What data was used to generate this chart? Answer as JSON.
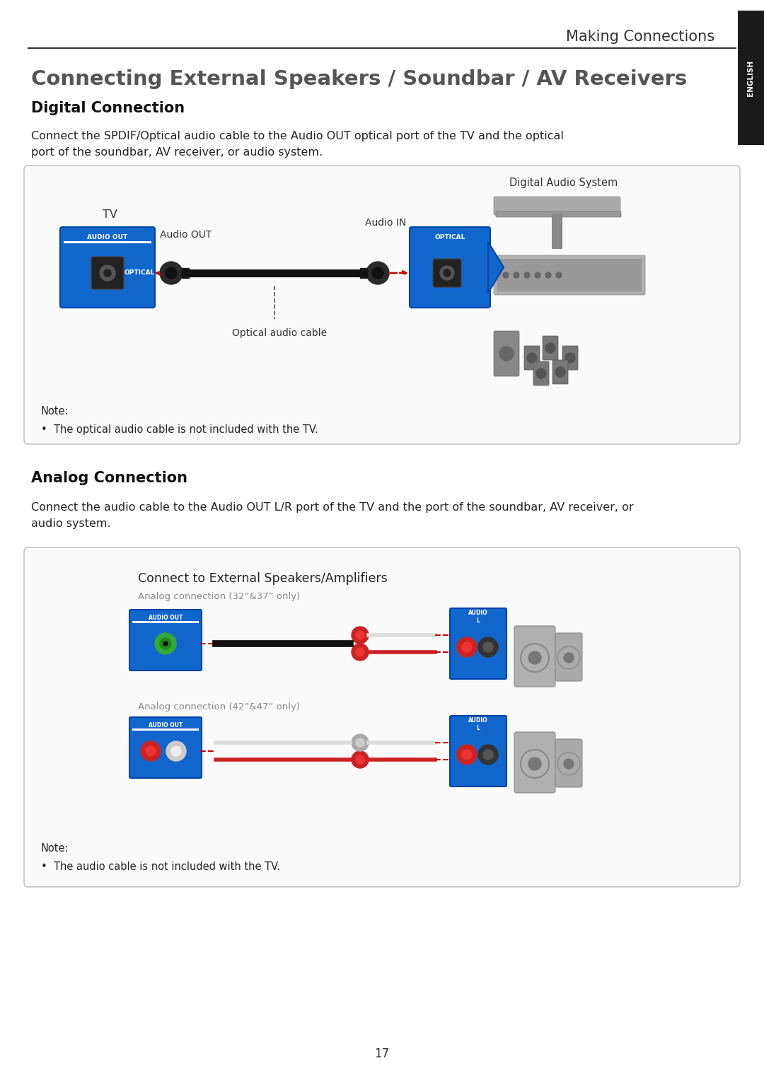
{
  "page_title": "Making Connections",
  "main_title": "Connecting External Speakers / Soundbar / AV Receivers",
  "section1_title": "Digital Connection",
  "section1_body": "Connect the SPDIF/Optical audio cable to the Audio OUT optical port of the TV and the optical\nport of the soundbar, AV receiver, or audio system.",
  "section2_title": "Analog Connection",
  "section2_body": "Connect the audio cable to the Audio OUT L/R port of the TV and the port of the soundbar, AV receiver, or\naudio system.",
  "digital_labels": {
    "tv": "TV",
    "audio_out_label": "Audio OUT",
    "audio_in_label": "Audio IN",
    "cable": "Optical audio cable",
    "system": "Digital Audio System",
    "port_out": "AUDIO OUT",
    "port_in": "OPTICAL",
    "optical_out": "OPTICAL"
  },
  "analog_labels": {
    "connect": "Connect to External Speakers/Amplifiers",
    "line1": "Analog connection (32”&37” only)",
    "line2": "Analog connection (42”&47” only)",
    "audio_out": "AUDIO OUT",
    "audio_l": "AUDIO\nL"
  },
  "note1": "Note:\n•  The optical audio cable is not included with the TV.",
  "note2": "Note:\n•  The audio cable is not included with the TV.",
  "page_number": "17",
  "english_tab": "ENGLISH",
  "bg_color": "#ffffff",
  "blue_color": "#1166cc",
  "blue_dark": "#0044aa",
  "tab_bg": "#1a1a1a"
}
